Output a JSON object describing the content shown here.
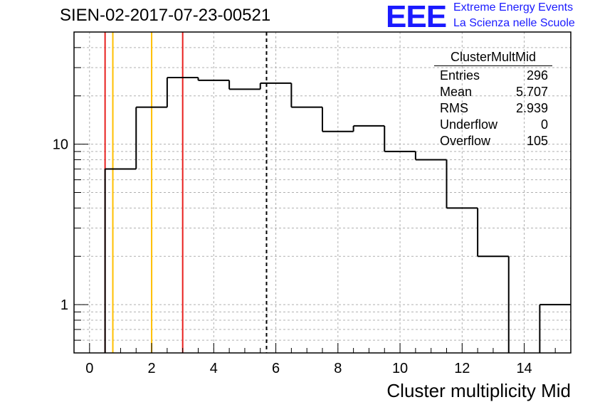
{
  "title": "SIEN-02-2017-07-23-00521",
  "logo": {
    "text": "EEE",
    "line1": "Extreme Energy Events",
    "line2": "La Scienza nelle Scuole",
    "color": "#1a1aff"
  },
  "stats": {
    "title": "ClusterMultMid",
    "rows": [
      {
        "label": "Entries",
        "value": "296"
      },
      {
        "label": "Mean",
        "value": "5.707"
      },
      {
        "label": "RMS",
        "value": "2.939"
      },
      {
        "label": "Underflow",
        "value": "0"
      },
      {
        "label": "Overflow",
        "value": "105"
      }
    ]
  },
  "chart_data": {
    "type": "histogram",
    "title": "SIEN-02-2017-07-23-00521",
    "xlabel": "Cluster multiplicity Mid",
    "ylabel": "",
    "x_range": [
      -0.5,
      15.5
    ],
    "y_range": [
      0.5,
      50
    ],
    "y_scale": "log",
    "grid": true,
    "bin_edges": [
      0.5,
      1.5,
      2.5,
      3.5,
      4.5,
      5.5,
      6.5,
      7.5,
      8.5,
      9.5,
      10.5,
      11.5,
      12.5,
      13.5,
      14.5,
      15.5
    ],
    "bin_counts": [
      7,
      17,
      26,
      25,
      22,
      24,
      17,
      12,
      13,
      9,
      8,
      4,
      2,
      0,
      1
    ],
    "x_ticks": [
      "0",
      "2",
      "4",
      "6",
      "8",
      "10",
      "12",
      "14"
    ],
    "y_ticks": [
      "1",
      "10"
    ],
    "vertical_lines": [
      {
        "x": 0.5,
        "color": "#e8201f",
        "style": "solid"
      },
      {
        "x": 0.75,
        "color": "#ffbf00",
        "style": "solid"
      },
      {
        "x": 2.0,
        "color": "#ffbf00",
        "style": "solid"
      },
      {
        "x": 3.0,
        "color": "#e8201f",
        "style": "solid"
      },
      {
        "x": 5.7,
        "color": "#000000",
        "style": "dashed"
      }
    ]
  }
}
